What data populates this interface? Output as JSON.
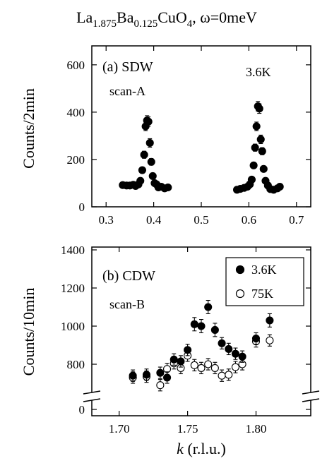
{
  "figure": {
    "title_base1": "La",
    "title_sub1": "1.875",
    "title_base2": "Ba",
    "title_sub2": "0.125",
    "title_base3": "CuO",
    "title_sub3": "4",
    "title_tail": ", ω=0meV",
    "xlabel_k": "k",
    "xlabel_unit": " (r.l.u.)"
  },
  "chart_data": [
    {
      "type": "scatter",
      "panel_label": "(a) SDW",
      "scan_label": "scan-A",
      "temperature_note": "3.6K",
      "ylabel": "Counts/2min",
      "xlim": [
        0.27,
        0.73
      ],
      "ylim": [
        0,
        680
      ],
      "xticks": [
        "0.3",
        "0.4",
        "0.5",
        "0.6",
        "0.7"
      ],
      "xtick_values": [
        0.3,
        0.4,
        0.5,
        0.6,
        0.7
      ],
      "yticks": [
        "0",
        "200",
        "400",
        "600"
      ],
      "ytick_values": [
        0,
        200,
        400,
        600
      ],
      "series": [
        {
          "marker": "filled",
          "points": [
            [
              0.335,
              92,
              8
            ],
            [
              0.343,
              90,
              8
            ],
            [
              0.35,
              90,
              8
            ],
            [
              0.357,
              93,
              8
            ],
            [
              0.362,
              88,
              8
            ],
            [
              0.368,
              95,
              8
            ],
            [
              0.372,
              110,
              10
            ],
            [
              0.376,
              155,
              12
            ],
            [
              0.38,
              220,
              15
            ],
            [
              0.383,
              340,
              18
            ],
            [
              0.386,
              365,
              20
            ],
            [
              0.389,
              360,
              20
            ],
            [
              0.392,
              270,
              18
            ],
            [
              0.395,
              190,
              14
            ],
            [
              0.398,
              130,
              12
            ],
            [
              0.402,
              100,
              10
            ],
            [
              0.406,
              95,
              8
            ],
            [
              0.41,
              82,
              8
            ],
            [
              0.416,
              85,
              8
            ],
            [
              0.423,
              78,
              8
            ],
            [
              0.43,
              82,
              8
            ],
            [
              0.575,
              72,
              8
            ],
            [
              0.582,
              76,
              8
            ],
            [
              0.59,
              80,
              8
            ],
            [
              0.597,
              85,
              8
            ],
            [
              0.602,
              95,
              8
            ],
            [
              0.606,
              115,
              10
            ],
            [
              0.61,
              175,
              12
            ],
            [
              0.613,
              250,
              15
            ],
            [
              0.616,
              340,
              18
            ],
            [
              0.619,
              425,
              20
            ],
            [
              0.622,
              415,
              20
            ],
            [
              0.625,
              285,
              18
            ],
            [
              0.628,
              235,
              15
            ],
            [
              0.631,
              160,
              12
            ],
            [
              0.635,
              110,
              10
            ],
            [
              0.64,
              90,
              8
            ],
            [
              0.645,
              75,
              8
            ],
            [
              0.652,
              72,
              8
            ],
            [
              0.66,
              78,
              8
            ],
            [
              0.665,
              85,
              8
            ]
          ]
        }
      ]
    },
    {
      "type": "scatter",
      "panel_label": "(b) CDW",
      "scan_label": "scan-B",
      "ylabel": "Counts/10min",
      "xlim": [
        1.68,
        1.84
      ],
      "ylim_broken": [
        0,
        1400
      ],
      "xticks": [
        "1.70",
        "1.75",
        "1.80"
      ],
      "xtick_values": [
        1.7,
        1.75,
        1.8
      ],
      "yticks": [
        "0",
        "800",
        "1000",
        "1200",
        "1400"
      ],
      "ytick_values": [
        0,
        800,
        1000,
        1200,
        1400
      ],
      "legend_position": "top-right",
      "series": [
        {
          "name": "3.6K",
          "marker": "filled",
          "points": [
            [
              1.71,
              740,
              30
            ],
            [
              1.72,
              745,
              30
            ],
            [
              1.73,
              755,
              30
            ],
            [
              1.735,
              730,
              30
            ],
            [
              1.74,
              825,
              30
            ],
            [
              1.745,
              815,
              30
            ],
            [
              1.75,
              875,
              30
            ],
            [
              1.755,
              1010,
              35
            ],
            [
              1.76,
              1000,
              35
            ],
            [
              1.765,
              1100,
              35
            ],
            [
              1.77,
              980,
              35
            ],
            [
              1.775,
              910,
              30
            ],
            [
              1.78,
              880,
              30
            ],
            [
              1.785,
              855,
              30
            ],
            [
              1.79,
              840,
              30
            ],
            [
              1.8,
              935,
              30
            ],
            [
              1.81,
              1030,
              35
            ]
          ]
        },
        {
          "name": "75K",
          "marker": "open",
          "points": [
            [
              1.71,
              730,
              30
            ],
            [
              1.72,
              735,
              30
            ],
            [
              1.73,
              690,
              30
            ],
            [
              1.735,
              775,
              30
            ],
            [
              1.74,
              805,
              30
            ],
            [
              1.745,
              780,
              30
            ],
            [
              1.75,
              845,
              30
            ],
            [
              1.755,
              795,
              30
            ],
            [
              1.76,
              780,
              30
            ],
            [
              1.765,
              800,
              30
            ],
            [
              1.77,
              780,
              30
            ],
            [
              1.775,
              740,
              30
            ],
            [
              1.78,
              745,
              30
            ],
            [
              1.785,
              785,
              30
            ],
            [
              1.79,
              800,
              30
            ],
            [
              1.8,
              920,
              30
            ],
            [
              1.81,
              925,
              30
            ]
          ]
        }
      ]
    }
  ]
}
